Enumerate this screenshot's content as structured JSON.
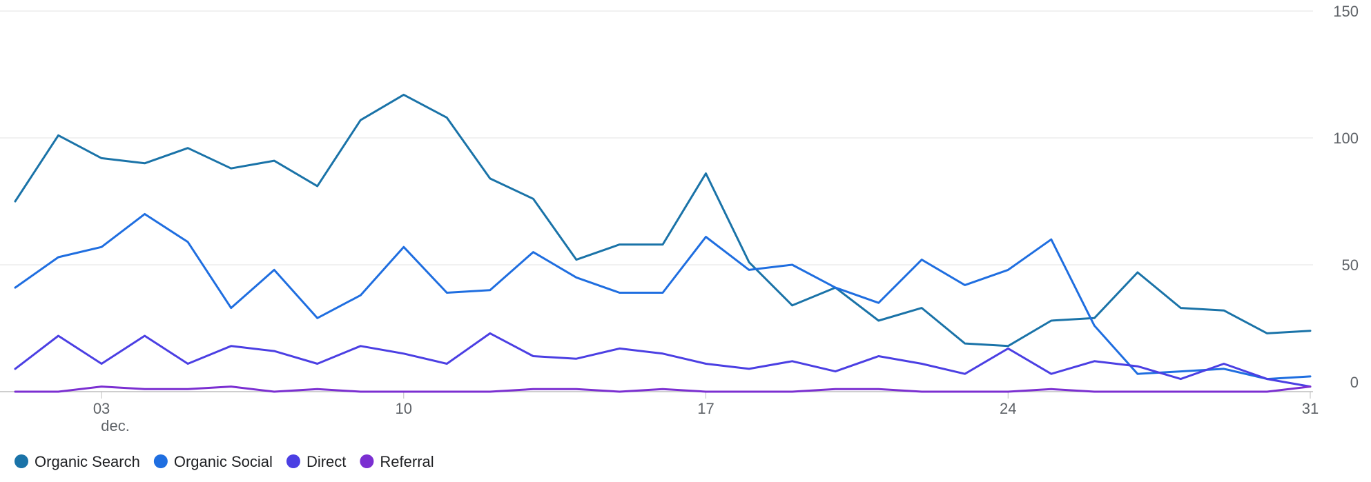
{
  "chart_data": {
    "type": "line",
    "title": "",
    "xlabel": "",
    "ylabel": "",
    "x": [
      "2024-12-01",
      "2024-12-02",
      "2024-12-03",
      "2024-12-04",
      "2024-12-05",
      "2024-12-06",
      "2024-12-07",
      "2024-12-08",
      "2024-12-09",
      "2024-12-10",
      "2024-12-11",
      "2024-12-12",
      "2024-12-13",
      "2024-12-14",
      "2024-12-15",
      "2024-12-16",
      "2024-12-17",
      "2024-12-18",
      "2024-12-19",
      "2024-12-20",
      "2024-12-21",
      "2024-12-22",
      "2024-12-23",
      "2024-12-24",
      "2024-12-25",
      "2024-12-26",
      "2024-12-27",
      "2024-12-28",
      "2024-12-29",
      "2024-12-30",
      "2024-12-31"
    ],
    "ylim": [
      0,
      150
    ],
    "y_ticks": [
      0,
      50,
      100,
      150
    ],
    "x_ticks": [
      {
        "date": "2024-12-03",
        "label": "03",
        "sublabel": "dec."
      },
      {
        "date": "2024-12-10",
        "label": "10",
        "sublabel": ""
      },
      {
        "date": "2024-12-17",
        "label": "17",
        "sublabel": ""
      },
      {
        "date": "2024-12-24",
        "label": "24",
        "sublabel": ""
      },
      {
        "date": "2024-12-31",
        "label": "31",
        "sublabel": ""
      }
    ],
    "grid": true,
    "legend_position": "bottom-left",
    "series": [
      {
        "name": "Organic Search",
        "color": "#1a73a8",
        "values": [
          75,
          101,
          92,
          90,
          96,
          88,
          91,
          81,
          107,
          117,
          108,
          84,
          76,
          52,
          58,
          58,
          86,
          51,
          34,
          41,
          28,
          33,
          19,
          18,
          28,
          29,
          47,
          33,
          32,
          23,
          24
        ]
      },
      {
        "name": "Organic Social",
        "color": "#1f6ee0",
        "values": [
          41,
          53,
          57,
          70,
          59,
          33,
          48,
          29,
          38,
          57,
          39,
          40,
          55,
          45,
          39,
          39,
          61,
          48,
          50,
          41,
          35,
          52,
          42,
          48,
          60,
          26,
          7,
          8,
          9,
          5,
          6
        ]
      },
      {
        "name": "Direct",
        "color": "#4b3fe3",
        "values": [
          9,
          22,
          11,
          22,
          11,
          18,
          16,
          11,
          18,
          15,
          11,
          23,
          14,
          13,
          17,
          15,
          11,
          9,
          12,
          8,
          14,
          11,
          7,
          17,
          7,
          12,
          10,
          5,
          11,
          5,
          2
        ]
      },
      {
        "name": "Referral",
        "color": "#7b2fd1",
        "values": [
          0,
          0,
          2,
          1,
          1,
          2,
          0,
          1,
          0,
          0,
          0,
          0,
          1,
          1,
          0,
          1,
          0,
          0,
          0,
          1,
          1,
          0,
          0,
          0,
          1,
          0,
          0,
          0,
          0,
          0,
          2
        ]
      }
    ]
  }
}
